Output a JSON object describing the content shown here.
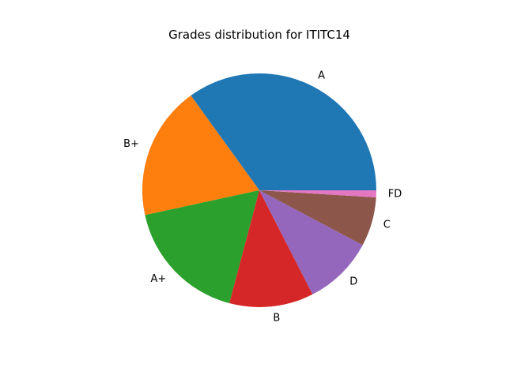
{
  "chart_data": {
    "type": "pie",
    "title": "Grades distribution for ITITC14",
    "categories": [
      "A",
      "B+",
      "A+",
      "B",
      "D",
      "C",
      "FD"
    ],
    "values": [
      36,
      19,
      18,
      12,
      10,
      7,
      1
    ],
    "colors": [
      "#1f77b4",
      "#ff7f0e",
      "#2ca02c",
      "#d62728",
      "#9467bd",
      "#8c564b",
      "#e377c2"
    ],
    "start_angle_deg": 0,
    "direction": "counterclockwise",
    "legend": "none"
  }
}
